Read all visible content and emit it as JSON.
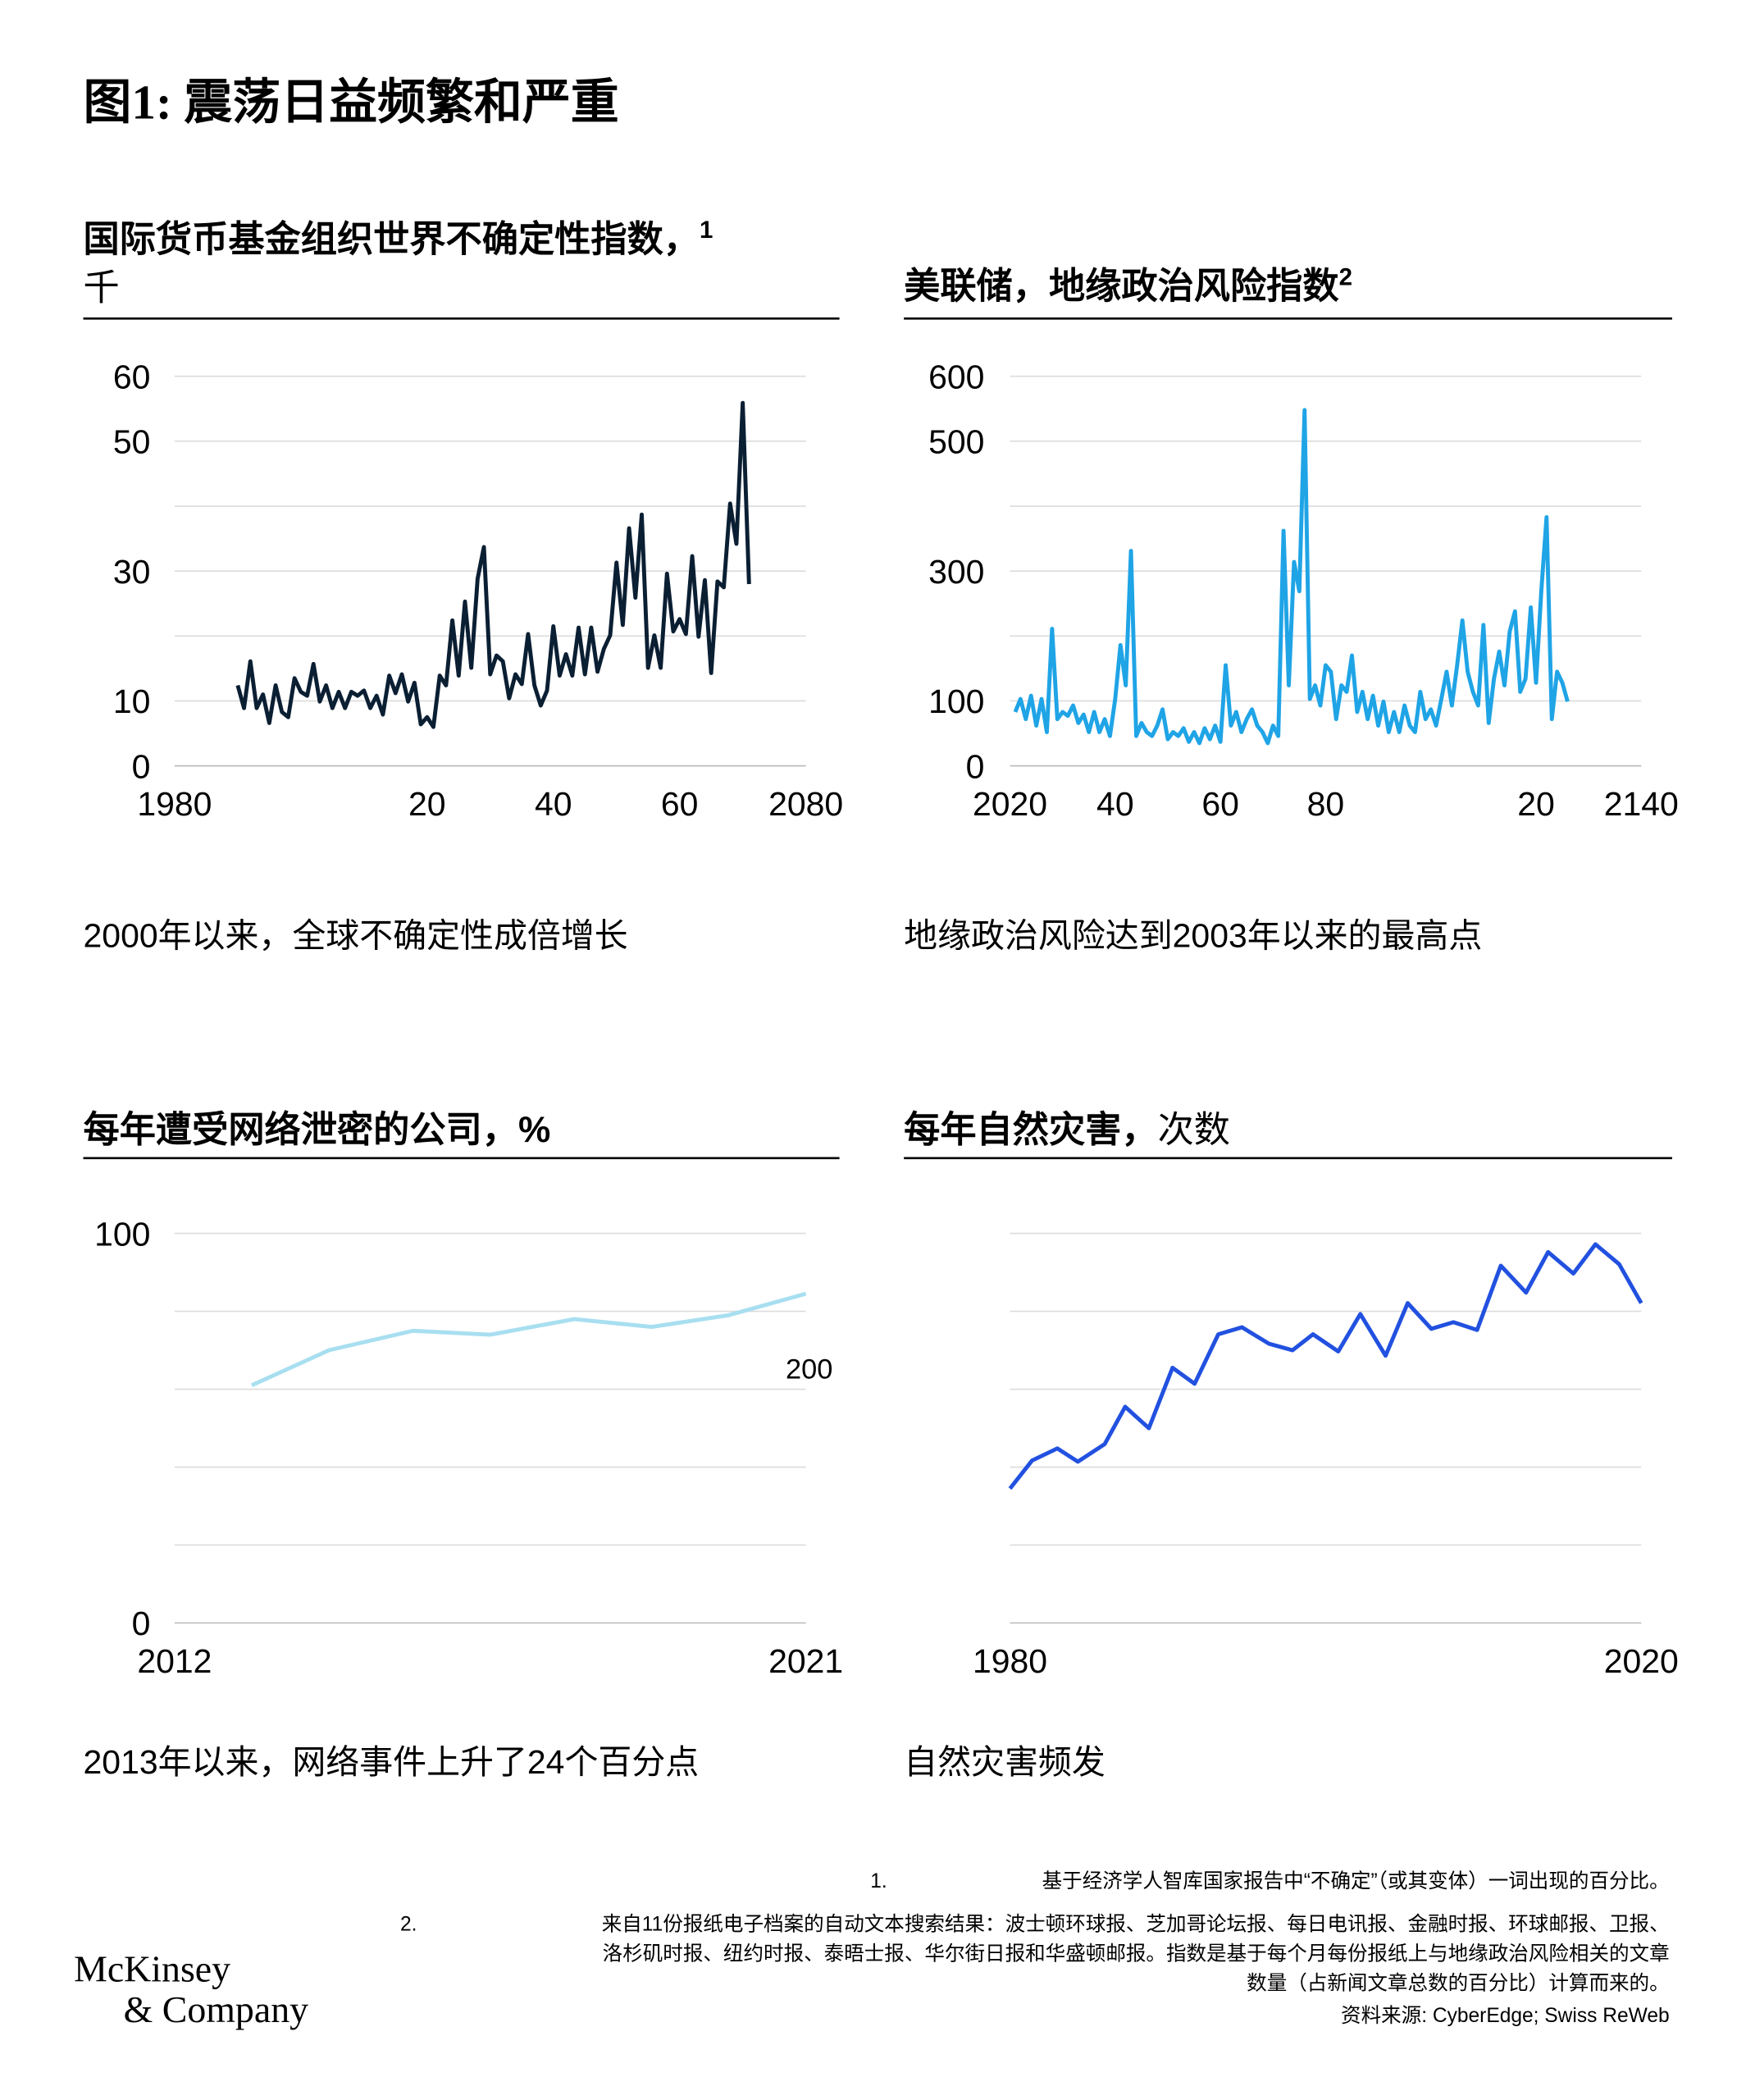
{
  "title": "图1: 震荡日益频繁和严重",
  "chart_data": [
    {
      "type": "line",
      "title": "国际货币基金组织世界不确定性指数，",
      "title_note": "1",
      "unit": "千",
      "caption": "2000年以来，全球不确定性成倍增长",
      "color": "#0b1f33",
      "xlim": [
        1980,
        2080
      ],
      "xticks": [
        1980,
        {
          "value": 2020,
          "label": "20"
        },
        {
          "value": 2040,
          "label": "40"
        },
        {
          "value": 2060,
          "label": "60"
        },
        2080
      ],
      "ylim": [
        0,
        60
      ],
      "yticks": [
        0,
        10,
        30,
        50,
        60
      ],
      "ygrid": [
        0,
        10,
        20,
        30,
        40,
        50,
        60
      ],
      "x": [
        1990,
        1991,
        1992,
        1993,
        1994,
        1995,
        1996,
        1997,
        1998,
        1999,
        2000,
        2001,
        2002,
        2003,
        2004,
        2005,
        2006,
        2007,
        2008,
        2009,
        2010,
        2011,
        2012,
        2013,
        2014,
        2015,
        2016,
        2017,
        2018,
        2019,
        2020,
        2021,
        2022,
        2023,
        2024,
        2025,
        2026,
        2027,
        2028,
        2029,
        2030,
        2031,
        2032,
        2033,
        2034,
        2035,
        2036,
        2037,
        2038,
        2039,
        2040,
        2041,
        2042,
        2043,
        2044,
        2045,
        2046,
        2047,
        2048,
        2049,
        2050,
        2051,
        2052,
        2053,
        2054,
        2055,
        2056,
        2057,
        2058,
        2059,
        2060,
        2061,
        2062,
        2063,
        2064,
        2065,
        2066,
        2067,
        2068,
        2069,
        2070,
        2071
      ],
      "values": [
        12.4,
        8.9,
        16.1,
        8.9,
        11.0,
        6.6,
        12.4,
        8.3,
        7.5,
        13.5,
        11.4,
        10.8,
        15.7,
        9.9,
        12.4,
        8.9,
        11.4,
        8.9,
        11.4,
        10.8,
        11.6,
        8.9,
        10.8,
        7.9,
        13.9,
        11.2,
        14.1,
        9.9,
        12.8,
        6.4,
        7.5,
        6.0,
        13.9,
        12.4,
        22.4,
        13.9,
        25.3,
        15.1,
        28.8,
        33.7,
        14.1,
        17.0,
        16.1,
        10.4,
        14.1,
        12.6,
        20.3,
        12.4,
        9.3,
        11.6,
        21.5,
        13.9,
        17.2,
        13.9,
        21.3,
        14.1,
        21.3,
        14.5,
        18.0,
        20.1,
        31.3,
        21.7,
        36.6,
        25.9,
        38.7,
        15.1,
        20.1,
        15.1,
        29.6,
        20.7,
        22.6,
        20.3,
        32.3,
        19.9,
        28.6,
        14.3,
        28.4,
        27.5,
        40.4,
        34.2,
        55.9,
        28.0
      ]
    },
    {
      "type": "line",
      "title": "美联储，地缘政治风险指数",
      "title_note": "2",
      "caption": "地缘政治风险达到2003年以来的最高点",
      "color": "#1fa4e6",
      "xlim": [
        2020,
        2140
      ],
      "xticks": [
        2020,
        {
          "value": 2040,
          "label": "40"
        },
        {
          "value": 2060,
          "label": "60"
        },
        {
          "value": 2080,
          "label": "80"
        },
        {
          "value": 2120,
          "label": "20"
        },
        2140
      ],
      "ylim": [
        0,
        600
      ],
      "yticks": [
        0,
        100,
        300,
        500,
        600
      ],
      "ygrid": [
        0,
        100,
        200,
        300,
        400,
        500,
        600
      ],
      "x": [
        2021,
        2022,
        2023,
        2024,
        2025,
        2026,
        2027,
        2028,
        2029,
        2030,
        2031,
        2032,
        2033,
        2034,
        2035,
        2036,
        2037,
        2038,
        2039,
        2040,
        2041,
        2042,
        2043,
        2044,
        2045,
        2046,
        2047,
        2048,
        2049,
        2050,
        2051,
        2052,
        2053,
        2054,
        2055,
        2056,
        2057,
        2058,
        2059,
        2060,
        2061,
        2062,
        2063,
        2064,
        2065,
        2066,
        2067,
        2068,
        2069,
        2070,
        2071,
        2072,
        2073,
        2074,
        2075,
        2076,
        2077,
        2078,
        2079,
        2080,
        2081,
        2082,
        2083,
        2084,
        2085,
        2086,
        2087,
        2088,
        2089,
        2090,
        2091,
        2092,
        2093,
        2094,
        2095,
        2096,
        2097,
        2098,
        2099,
        2100,
        2101,
        2102,
        2103,
        2104,
        2105,
        2106,
        2107,
        2108,
        2109,
        2110,
        2111,
        2112,
        2113,
        2114,
        2115,
        2116,
        2117,
        2118,
        2119,
        2120,
        2121,
        2122,
        2123,
        2124,
        2125,
        2126
      ],
      "values": [
        83,
        103,
        72,
        108,
        62,
        103,
        52,
        211,
        72,
        83,
        77,
        93,
        66,
        79,
        52,
        83,
        52,
        72,
        46,
        103,
        186,
        124,
        331,
        46,
        66,
        52,
        46,
        62,
        87,
        41,
        52,
        46,
        58,
        37,
        52,
        35,
        58,
        41,
        62,
        37,
        155,
        62,
        83,
        52,
        72,
        87,
        62,
        52,
        35,
        62,
        46,
        362,
        124,
        314,
        269,
        548,
        103,
        124,
        93,
        155,
        145,
        72,
        124,
        114,
        170,
        83,
        114,
        72,
        108,
        62,
        99,
        52,
        83,
        52,
        93,
        62,
        52,
        114,
        72,
        87,
        62,
        103,
        145,
        93,
        155,
        224,
        145,
        114,
        93,
        217,
        66,
        134,
        176,
        124,
        207,
        238,
        114,
        134,
        244,
        128,
        269,
        383,
        72,
        145,
        128,
        99
      ]
    },
    {
      "type": "line",
      "title": "每年遭受网络泄密的公司，%",
      "caption": "2013年以来，网络事件上升了24个百分点",
      "annotation": "200",
      "color": "#a8dff0",
      "xlim": [
        2012,
        2021
      ],
      "xticks": [
        2012,
        2021
      ],
      "ylim": [
        0,
        100
      ],
      "yticks": [
        0,
        100
      ],
      "ygrid": [
        0,
        20,
        40,
        60,
        80,
        100
      ],
      "x": [
        2013.1,
        2014.2,
        2015.4,
        2016.5,
        2017.7,
        2018.8,
        2019.9,
        2021
      ],
      "values": [
        61,
        70,
        75,
        74,
        78,
        76,
        79,
        84.5
      ]
    },
    {
      "type": "line",
      "title": "每年自然灾害，",
      "unit": "次数",
      "caption": "自然灾害频发",
      "color": "#2251e0",
      "xlim": [
        1980,
        2020
      ],
      "xticks": [
        1980,
        2020
      ],
      "ylim": [
        0,
        100
      ],
      "ygrid": [
        0,
        20,
        40,
        60,
        80,
        100
      ],
      "x": [
        1980.0,
        1981.4,
        1983.0,
        1984.3,
        1986.0,
        1987.3,
        1988.8,
        1990.3,
        1991.7,
        1993.2,
        1994.7,
        1996.4,
        1997.9,
        1999.2,
        2000.8,
        2002.2,
        2003.8,
        2005.2,
        2006.7,
        2008.1,
        2009.6,
        2011.1,
        2012.7,
        2014.1,
        2015.7,
        2017.1,
        2018.6,
        2020.0
      ],
      "values": [
        34.5,
        41.7,
        44.8,
        41.4,
        45.9,
        55.5,
        50,
        65.5,
        61.4,
        74.1,
        75.9,
        71.7,
        70,
        74.1,
        69.7,
        79.3,
        68.6,
        82.1,
        75.5,
        77.2,
        75.2,
        91.7,
        84.8,
        95.2,
        89.7,
        97.2,
        92.1,
        82.1
      ]
    }
  ],
  "footnotes": [
    {
      "number": "1.",
      "lines": [
        "基于经济学人智库国家报告中“不确定”（或其变体）一词出现的百分比。"
      ]
    },
    {
      "number": "2.",
      "lines": [
        "来自11份报纸电子档案的自动文本搜索结果：波士顿环球报、芝加哥论坛报、每日电讯报、金融时报、环球邮报、卫报、",
        "洛杉矶时报、纽约时报、泰晤士报、华尔街日报和华盛顿邮报。指数是基于每个月每份报纸上与地缘政治风险相关的文章",
        "数量（占新闻文章总数的百分比）计算而来的。"
      ]
    }
  ],
  "source": "资料来源: CyberEdge; Swiss ReWeb",
  "logo": [
    "McKinsey",
    "& Company"
  ]
}
